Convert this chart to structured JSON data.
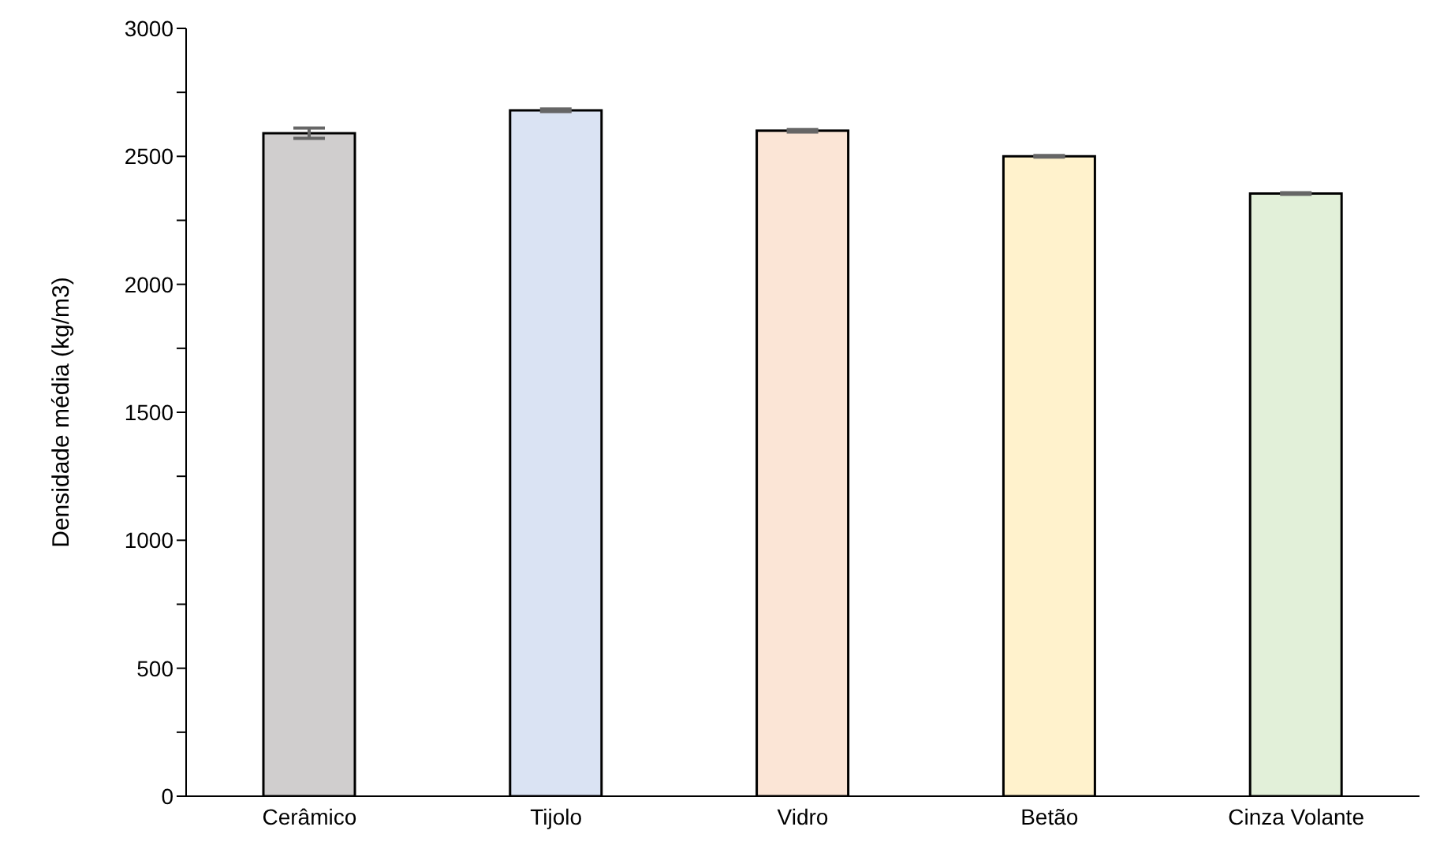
{
  "chart_data": {
    "type": "bar",
    "ylabel": "Densidade média  (kg/m3)",
    "categories": [
      "Cerâmico",
      "Tijolo",
      "Vidro",
      "Betão",
      "Cinza Volante"
    ],
    "values": [
      2590,
      2680,
      2600,
      2500,
      2355
    ],
    "errors": [
      20,
      5,
      5,
      3,
      3
    ],
    "colors": [
      "#d0cece",
      "#dae3f3",
      "#fbe5d6",
      "#fff2cc",
      "#e2f0d9"
    ],
    "ylim": [
      0,
      3000
    ],
    "yticks": [
      0,
      {
        "value": 250,
        "label": null
      },
      500,
      {
        "value": 750,
        "label": null
      },
      1000,
      {
        "value": 1250,
        "label": null
      },
      1500,
      {
        "value": 1750,
        "label": null
      },
      2000,
      {
        "value": 2250,
        "label": null
      },
      2500,
      {
        "value": 2750,
        "label": null
      },
      3000
    ],
    "grid": false,
    "legend": false
  }
}
